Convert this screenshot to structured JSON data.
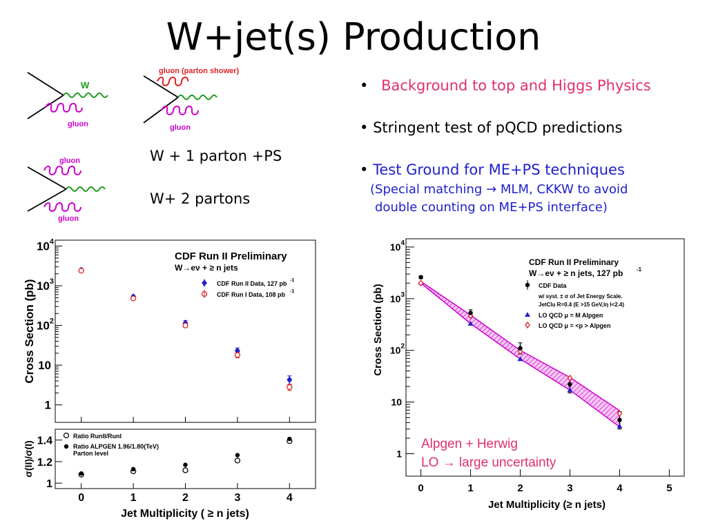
{
  "slide": {
    "title": "W+jet(s) Production",
    "bullets": [
      {
        "marker": "•",
        "text": "Background to top and Higgs Physics",
        "color": "#e0306a"
      },
      {
        "marker": "•",
        "text": "Stringent test of pQCD predictions",
        "color": "#000000"
      },
      {
        "marker": "•",
        "text": "Test Ground for ME+PS techniques",
        "color": "#2020cc"
      }
    ],
    "sub_bullet_lines": [
      "(Special matching  → MLM, CKKW to avoid",
      "double counting on ME+PS interface)"
    ],
    "feynman": {
      "d1_labels": [
        "W",
        "gluon"
      ],
      "d2_labels": [
        "gluon (parton shower)",
        "gluon"
      ],
      "d3_labels": [
        "gluon",
        "gluon"
      ],
      "caption1": "W + 1 parton +PS",
      "caption2": "W+ 2 partons"
    },
    "annotation_lines": [
      "Alpgen + Herwig",
      "LO → large uncertainty"
    ],
    "colors": {
      "pink": "#e0306a",
      "blue": "#2020cc",
      "magenta": "#cc00cc",
      "green": "#1a9a1a",
      "red": "#dd2222"
    }
  },
  "chart_data": [
    {
      "type": "scatter",
      "title": "CDF Run II Preliminary",
      "subtitle": "W→eν + ≥ n jets",
      "ylabel": "Cross Section (pb)",
      "yscale": "log",
      "ylim": [
        0.5,
        12000
      ],
      "xlim": [
        -0.5,
        4.5
      ],
      "yticks": [
        {
          "value": 10000,
          "base": "10",
          "exp": "4"
        },
        {
          "value": 1000,
          "base": "10",
          "exp": "3"
        },
        {
          "value": 100,
          "base": "10",
          "exp": "2"
        },
        {
          "value": 10,
          "base": "10",
          "exp": ""
        },
        {
          "value": 1,
          "base": "1",
          "exp": ""
        }
      ],
      "series": [
        {
          "name": "CDF Run II Data, 127 pb",
          "superscript": "-1",
          "color": "#2020cc",
          "marker": "diamond-filled",
          "x": [
            0,
            1,
            2,
            3,
            4
          ],
          "y": [
            2500,
            530,
            115,
            23,
            4.3
          ],
          "err": [
            0.08,
            0.1,
            0.15,
            0.18,
            0.25
          ]
        },
        {
          "name": "CDF Run I Data, 108 pb",
          "superscript": "-1",
          "color": "#dd2222",
          "marker": "circle-open",
          "x": [
            0,
            1,
            2,
            3,
            4
          ],
          "y": [
            2400,
            480,
            100,
            18,
            2.8
          ],
          "err": [
            0.06,
            0.08,
            0.12,
            0.15,
            0.18
          ]
        }
      ]
    },
    {
      "type": "scatter",
      "ylabel": "σ(II)/σ(I)",
      "xlabel": "Jet Multiplicity (   ≥ n jets)",
      "xlim": [
        -0.5,
        4.5
      ],
      "ylim": [
        0.95,
        1.5
      ],
      "xticks": [
        0,
        1,
        2,
        3,
        4
      ],
      "yticks": [
        1,
        1.2,
        1.4
      ],
      "series": [
        {
          "name": "Ratio RunII/RunI",
          "marker": "circle-open",
          "x": [
            0,
            1,
            2,
            3,
            4
          ],
          "y": [
            1.08,
            1.11,
            1.12,
            1.21,
            1.39
          ]
        },
        {
          "name": "Ratio ALPGEN 1.96/1.80(TeV)",
          "name_line2": "Parton level",
          "marker": "circle-filled",
          "x": [
            0,
            1,
            2,
            3,
            4
          ],
          "y": [
            1.09,
            1.13,
            1.17,
            1.26,
            1.41
          ]
        }
      ]
    },
    {
      "type": "scatter",
      "title": "CDF Run II Preliminary",
      "subtitle": "W→eν + ≥ n jets, 127 pb",
      "subtitle_sup": "-1",
      "ylabel": "Cross Section (pb)",
      "xlabel": "Jet Multiplicity (≥ n jets)",
      "yscale": "log",
      "ylim": [
        0.5,
        12000
      ],
      "xlim": [
        -0.3,
        5.3
      ],
      "xticks": [
        0,
        1,
        2,
        3,
        4,
        5
      ],
      "yticks": [
        {
          "value": 10000,
          "base": "10",
          "exp": "4"
        },
        {
          "value": 1000,
          "base": "10",
          "exp": "3"
        },
        {
          "value": 100,
          "base": "10",
          "exp": "2"
        },
        {
          "value": 10,
          "base": "10",
          "exp": ""
        },
        {
          "value": 1,
          "base": "1",
          "exp": ""
        }
      ],
      "legend": {
        "data_label": "CDF Data",
        "syst_line1": "w/ syst. ± σ of Jet Energy Scale.",
        "syst_line2": "JetClu R=0.4 (E  >15 GeV,lη  l<2.4)",
        "lo1_label": "LO QCD  μ    = M",
        "lo1_tail": "  Alpgen",
        "lo2_label": "LO QCD  μ    = <p  >",
        "lo2_tail": "  Alpgen"
      },
      "series": [
        {
          "name": "CDF Data",
          "color": "#000000",
          "marker": "circle-filled",
          "x": [
            0,
            1,
            2,
            3,
            4
          ],
          "y": [
            2600,
            530,
            110,
            22,
            4.5
          ],
          "err_lo": [
            2450,
            450,
            85,
            15,
            3.0
          ],
          "err_hi": [
            2750,
            610,
            140,
            30,
            6.5
          ]
        },
        {
          "name": "LO QCD μ = M_W Alpgen",
          "color": "#2020cc",
          "marker": "triangle",
          "x": [
            0,
            1,
            2,
            3,
            4
          ],
          "y": [
            2050,
            330,
            68,
            17,
            3.4
          ]
        },
        {
          "name": "LO QCD μ = <pT> Alpgen",
          "color": "#dd2222",
          "marker": "diamond-open",
          "x": [
            0,
            1,
            2,
            3,
            4
          ],
          "y": [
            2000,
            470,
            95,
            29,
            6.0
          ]
        },
        {
          "name": "band",
          "color": "#cc00cc",
          "x": [
            0,
            1,
            2,
            3,
            4
          ],
          "y_lo": [
            2000,
            330,
            68,
            17,
            3.3
          ],
          "y_hi": [
            2150,
            480,
            100,
            30,
            6.8
          ]
        }
      ]
    }
  ]
}
